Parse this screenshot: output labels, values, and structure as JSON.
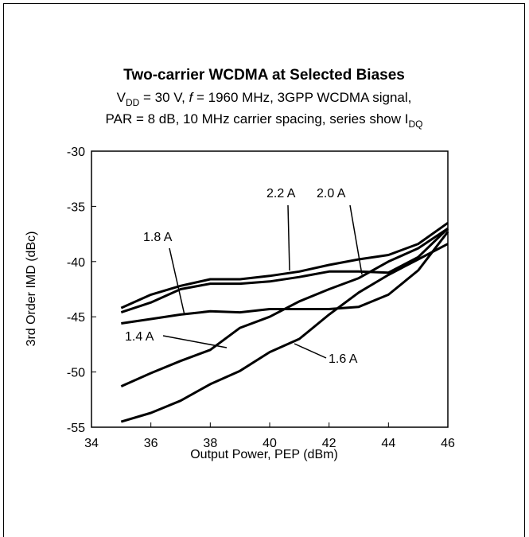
{
  "chart_data": {
    "type": "line",
    "title": "Two-carrier WCDMA at Selected Biases",
    "subtitle": [
      [
        {
          "text": "V"
        },
        {
          "text": "DD",
          "sub": true
        },
        {
          "text": " = 30 V, "
        },
        {
          "text": "f",
          "italic": true
        },
        {
          "text": " = 1960 MHz, 3GPP WCDMA signal,"
        }
      ],
      [
        {
          "text": "PAR = 8 dB, 10 MHz carrier spacing, series show I"
        },
        {
          "text": "DQ",
          "sub": true
        }
      ]
    ],
    "x_label": "Output Power, PEP (dBm)",
    "y_label": "3rd Order IMD (dBc)",
    "x": [
      35,
      36,
      37,
      38,
      39,
      40,
      41,
      42,
      43,
      44,
      45,
      46
    ],
    "series": [
      {
        "name": "2.2 A",
        "color": "#000000",
        "values": [
          -44.2,
          -43.0,
          -42.2,
          -41.6,
          -41.6,
          -41.3,
          -40.9,
          -40.3,
          -39.8,
          -39.4,
          -38.4,
          -36.5
        ]
      },
      {
        "name": "2.0 A",
        "color": "#000000",
        "values": [
          -44.6,
          -43.7,
          -42.5,
          -42.0,
          -42.0,
          -41.8,
          -41.4,
          -40.9,
          -40.9,
          -41.0,
          -39.6,
          -37.0
        ]
      },
      {
        "name": "1.8 A",
        "color": "#000000",
        "values": [
          -45.6,
          -45.2,
          -44.8,
          -44.5,
          -44.6,
          -44.3,
          -44.3,
          -44.3,
          -44.1,
          -43.0,
          -40.8,
          -37.3
        ]
      },
      {
        "name": "1.4 A",
        "color": "#000000",
        "values": [
          -51.3,
          -50.1,
          -49.0,
          -48.0,
          -46.0,
          -45.0,
          -43.6,
          -42.5,
          -41.5,
          -40.0,
          -38.8,
          -37.0
        ]
      },
      {
        "name": "1.6 A",
        "color": "#000000",
        "values": [
          -54.5,
          -53.7,
          -52.6,
          -51.1,
          -49.9,
          -48.2,
          -47.0,
          -44.8,
          -42.8,
          -41.2,
          -39.8,
          -38.4
        ]
      }
    ],
    "xlim": [
      34,
      46
    ],
    "ylim": [
      -55,
      -30
    ],
    "xticks": [
      34,
      36,
      38,
      40,
      42,
      44,
      46
    ],
    "yticks": [
      -30,
      -35,
      -40,
      -45,
      -50,
      -55
    ],
    "grid": false
  }
}
